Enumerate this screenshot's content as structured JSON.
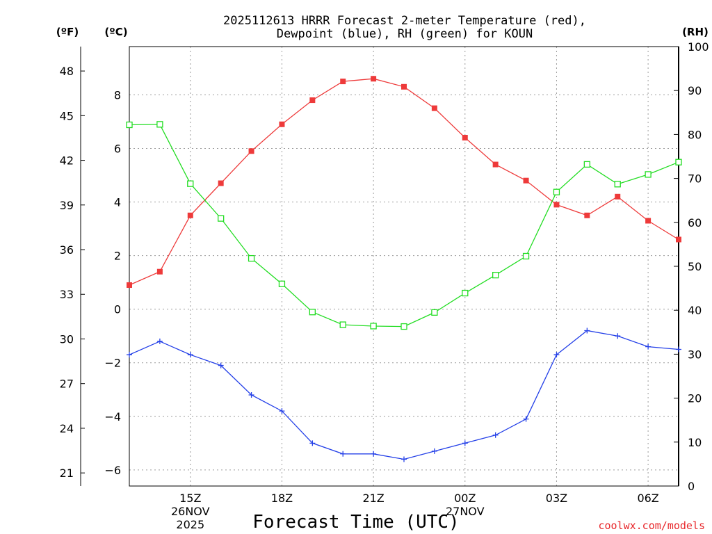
{
  "chart_data": {
    "type": "line",
    "title_line1": "2025112613 HRRR Forecast 2-meter Temperature (red),",
    "title_line2": "Dewpoint (blue), RH (green) for KOUN",
    "xlabel": "Forecast Time (UTC)",
    "credit": "coolwx.com/models",
    "left_outer_unit": "(ºF)",
    "left_inner_unit": "(ºC)",
    "right_unit": "(RH)",
    "x_hours": [
      13,
      14,
      15,
      16,
      17,
      18,
      19,
      20,
      21,
      22,
      23,
      24,
      25,
      26,
      27,
      28,
      29,
      30,
      31
    ],
    "xlim": [
      13,
      31
    ],
    "x_ticks": [
      {
        "hour": 15,
        "label": "15Z",
        "date": "26NOV",
        "year": "2025"
      },
      {
        "hour": 18,
        "label": "18Z"
      },
      {
        "hour": 21,
        "label": "21Z"
      },
      {
        "hour": 24,
        "label": "00Z",
        "date": "27NOV"
      },
      {
        "hour": 27,
        "label": "03Z"
      },
      {
        "hour": 30,
        "label": "06Z"
      }
    ],
    "celsius_axis": {
      "ylim": [
        -6.6,
        9.8
      ],
      "ticks": [
        -6,
        -4,
        -2,
        0,
        2,
        4,
        6,
        8
      ]
    },
    "fahrenheit_axis": {
      "ticks": [
        21,
        24,
        27,
        30,
        33,
        36,
        39,
        42,
        45,
        48
      ]
    },
    "rh_axis": {
      "ylim": [
        0,
        100
      ],
      "ticks": [
        0,
        10,
        20,
        30,
        40,
        50,
        60,
        70,
        80,
        90,
        100
      ]
    },
    "series": [
      {
        "name": "Temperature",
        "axis": "celsius",
        "color": "#ee3a3a",
        "marker": "filled-square",
        "values": [
          0.9,
          1.4,
          3.5,
          4.7,
          5.9,
          6.9,
          7.8,
          8.5,
          8.6,
          8.3,
          7.5,
          6.4,
          5.4,
          4.8,
          3.9,
          3.5,
          4.2,
          3.3,
          2.6
        ]
      },
      {
        "name": "Dewpoint",
        "axis": "celsius",
        "color": "#2440e8",
        "marker": "plus",
        "values": [
          -1.7,
          -1.2,
          -1.7,
          -2.1,
          -3.2,
          -3.8,
          -5.0,
          -5.4,
          -5.4,
          -5.6,
          -5.3,
          -5.0,
          -4.7,
          -4.1,
          -1.7,
          -0.8,
          -1.0,
          -1.4,
          -1.5
        ]
      },
      {
        "name": "Relative Humidity",
        "axis": "rh",
        "color": "#22dd22",
        "marker": "open-square",
        "values": [
          82.2,
          82.3,
          68.8,
          60.9,
          51.8,
          46.0,
          39.6,
          36.7,
          36.4,
          36.3,
          39.5,
          43.9,
          48.0,
          52.3,
          66.9,
          73.2,
          68.7,
          70.9,
          73.7
        ]
      }
    ]
  }
}
